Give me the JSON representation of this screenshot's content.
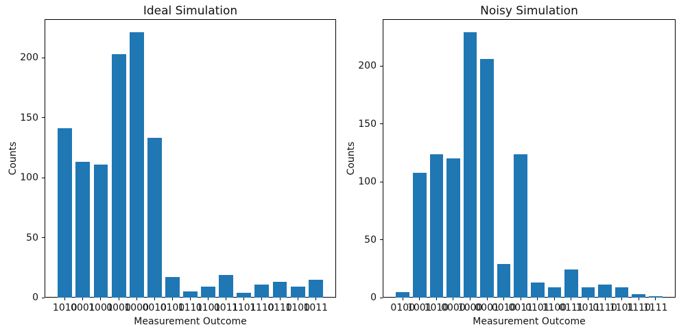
{
  "figure": {
    "background": "#ffffff",
    "bar_color": "#1f77b4",
    "text_color": "#111111"
  },
  "chart_data": [
    {
      "type": "bar",
      "title": "Ideal Simulation",
      "xlabel": "Measurement Outcome",
      "ylabel": "Counts",
      "categories": [
        "1010",
        "0001",
        "1001",
        "0000",
        "1000",
        "0010",
        "0100",
        "1111",
        "0101",
        "0011",
        "1101",
        "1110",
        "0110",
        "1100",
        "1011"
      ],
      "values": [
        141,
        113,
        111,
        203,
        221,
        133,
        17,
        5,
        9,
        19,
        4,
        11,
        13,
        9,
        15
      ],
      "yticks": [
        0,
        50,
        100,
        150,
        200
      ],
      "ylim": [
        0,
        232.05
      ],
      "grid": false,
      "legend": null,
      "bar_color": "#1f77b4"
    },
    {
      "type": "bar",
      "title": "Noisy Simulation",
      "xlabel": "Measurement Outcome",
      "ylabel": "Counts",
      "categories": [
        "0100",
        "1001",
        "1010",
        "0000",
        "1000",
        "0001",
        "0010",
        "0011",
        "0101",
        "1100",
        "0111",
        "1011",
        "0110",
        "1101",
        "1110",
        "1111"
      ],
      "values": [
        5,
        108,
        124,
        120,
        229,
        206,
        29,
        124,
        13,
        9,
        24,
        9,
        11,
        9,
        3,
        1
      ],
      "yticks": [
        0,
        50,
        100,
        150,
        200
      ],
      "ylim": [
        0,
        240.45
      ],
      "grid": false,
      "legend": null,
      "bar_color": "#1f77b4"
    }
  ]
}
